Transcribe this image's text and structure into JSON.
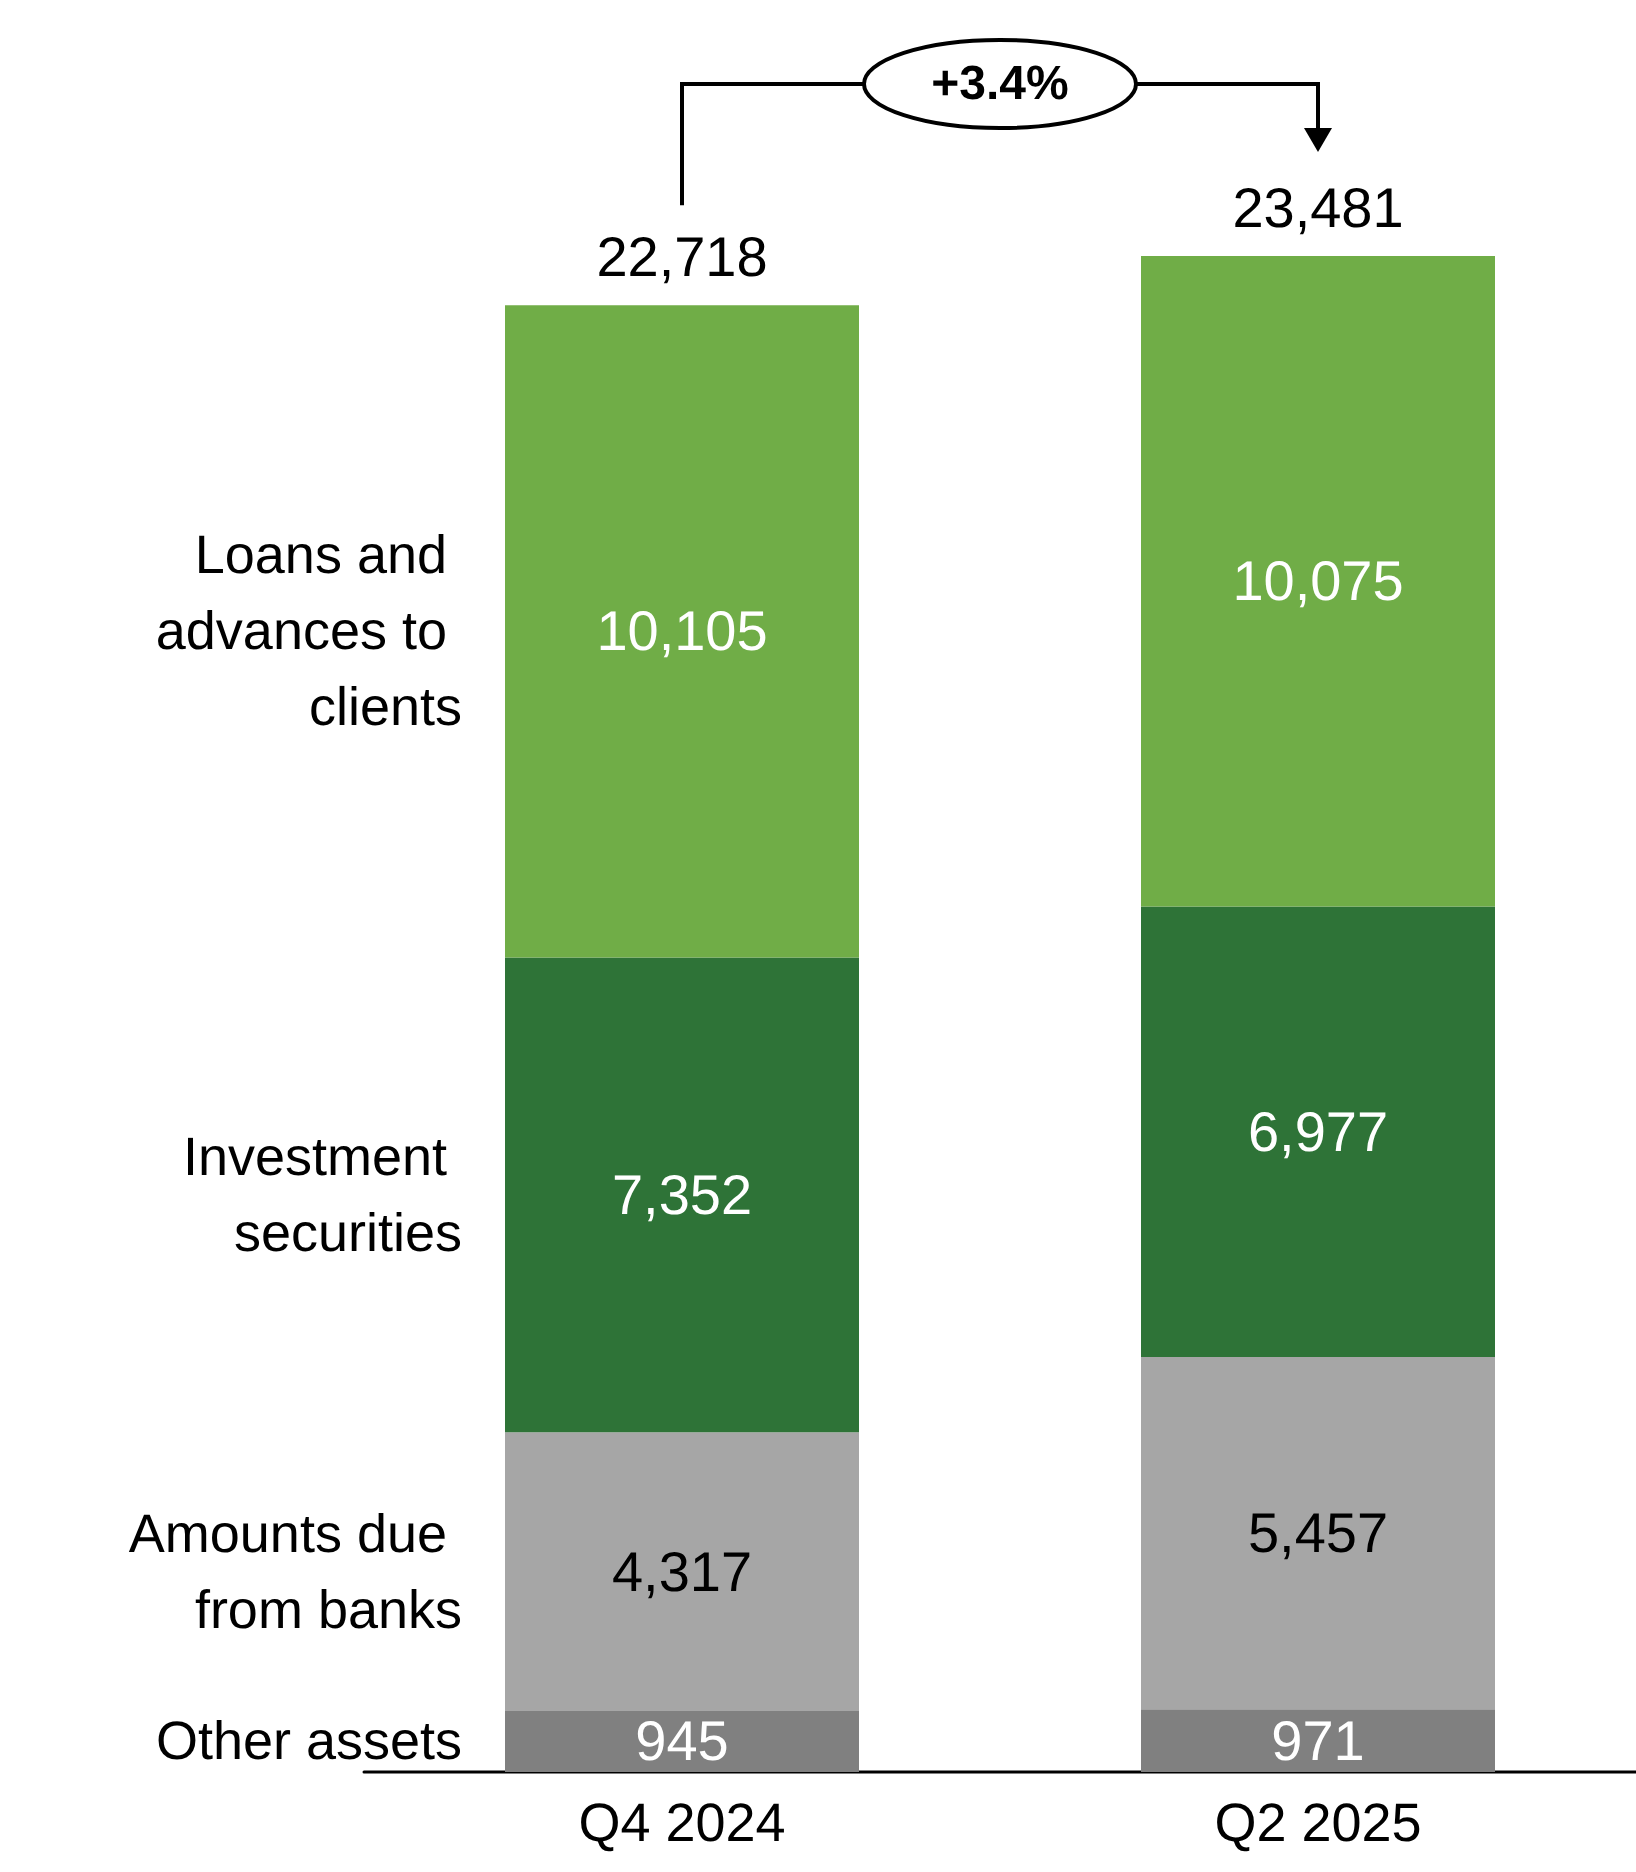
{
  "chart_data": {
    "type": "bar",
    "stacked": true,
    "categories": [
      "Q4 2024",
      "Q2 2025"
    ],
    "series": [
      {
        "name": "Other assets",
        "color": "#808080",
        "values": [
          945,
          971
        ],
        "value_labels": [
          "945",
          "971"
        ]
      },
      {
        "name": "Amounts due from banks",
        "color": "#a6a6a6",
        "values": [
          4317,
          5457
        ],
        "value_labels": [
          "4,317",
          "5,457"
        ]
      },
      {
        "name": "Investment securities",
        "color": "#2e7337",
        "values": [
          7352,
          6977
        ],
        "value_labels": [
          "7,352",
          "6,977"
        ]
      },
      {
        "name": "Loans and advances to clients",
        "color": "#70ad47",
        "values": [
          10105,
          10075
        ],
        "value_labels": [
          "10,105",
          "10,075"
        ]
      }
    ],
    "totals": [
      "22,718",
      "23,481"
    ],
    "annotations": [
      "+3.4%"
    ]
  }
}
